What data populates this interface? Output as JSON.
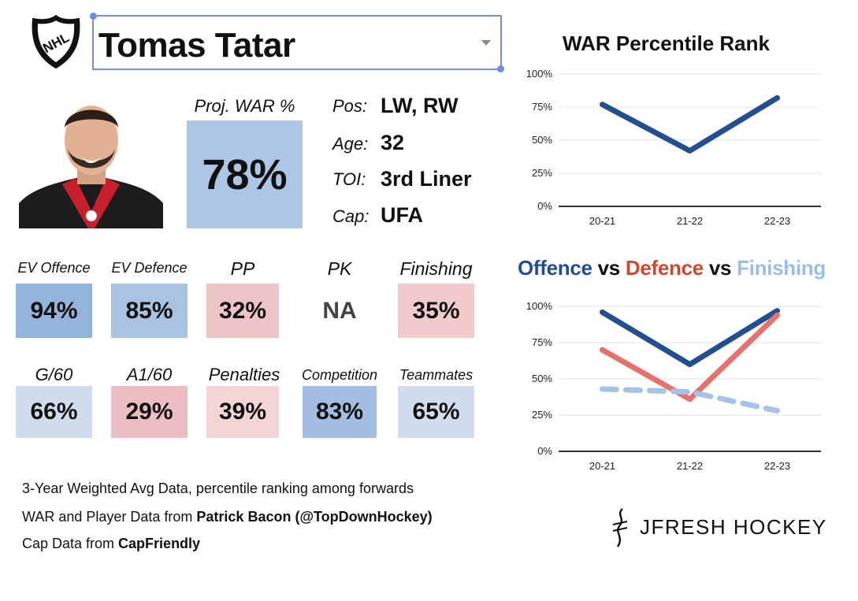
{
  "header": {
    "logo_text": "NHL",
    "player_name": "Tomas Tatar"
  },
  "projection": {
    "label": "Proj. WAR %",
    "value": "78%",
    "color": "#adc6e5"
  },
  "info": [
    {
      "label": "Pos:",
      "value": "LW, RW"
    },
    {
      "label": "Age:",
      "value": "32"
    },
    {
      "label": "TOI:",
      "value": "3rd Liner"
    },
    {
      "label": "Cap:",
      "value": "UFA"
    }
  ],
  "stats_row1": [
    {
      "label": "EV Offence",
      "value": "94%",
      "color": "#94b4dc"
    },
    {
      "label": "EV Defence",
      "value": "85%",
      "color": "#a9c3e3"
    },
    {
      "label": "PP",
      "value": "32%",
      "color": "#efc4c7"
    },
    {
      "label": "PK",
      "value": "NA",
      "color": "#ffffff"
    },
    {
      "label": "Finishing",
      "value": "35%",
      "color": "#f1cacc"
    }
  ],
  "stats_row2": [
    {
      "label": "G/60",
      "value": "66%",
      "color": "#cfdced"
    },
    {
      "label": "A1/60",
      "value": "29%",
      "color": "#ecbdc1"
    },
    {
      "label": "Penalties",
      "value": "39%",
      "color": "#f4d5d6"
    },
    {
      "label": "Competition",
      "value": "83%",
      "color": "#a3bee2"
    },
    {
      "label": "Teammates",
      "value": "65%",
      "color": "#d1ddee"
    }
  ],
  "footer": {
    "line1": "3-Year Weighted Avg Data, percentile ranking among forwards",
    "line2_prefix": "WAR and Player Data from ",
    "line2_bold": "Patrick Bacon (@TopDownHockey)",
    "line3_prefix": "Cap Data from ",
    "line3_bold": "CapFriendly"
  },
  "brand": {
    "name": "JFRESH HOCKEY"
  },
  "chart_data": [
    {
      "type": "line",
      "title": "WAR Percentile Rank",
      "categories": [
        "20-21",
        "21-22",
        "22-23"
      ],
      "y_ticks": [
        "0%",
        "25%",
        "50%",
        "75%",
        "100%"
      ],
      "ylim": [
        0,
        100
      ],
      "grid": true,
      "series": [
        {
          "values": [
            77,
            42,
            82
          ],
          "color": "#234f8f",
          "style": "solid"
        }
      ]
    },
    {
      "type": "line",
      "title_parts": [
        {
          "text": "Offence",
          "color": "#234f8f"
        },
        {
          "text": " vs ",
          "color": "#111111"
        },
        {
          "text": "Defence",
          "color": "#c94a33"
        },
        {
          "text": " vs ",
          "color": "#111111"
        },
        {
          "text": "Finishing",
          "color": "#9bbde3"
        }
      ],
      "categories": [
        "20-21",
        "21-22",
        "22-23"
      ],
      "y_ticks": [
        "0%",
        "25%",
        "50%",
        "75%",
        "100%"
      ],
      "ylim": [
        0,
        100
      ],
      "grid": true,
      "series": [
        {
          "values": [
            96,
            60,
            97
          ],
          "color": "#234f8f",
          "style": "solid"
        },
        {
          "values": [
            70,
            36,
            94
          ],
          "color": "#e5726d",
          "style": "solid"
        },
        {
          "values": [
            43,
            41,
            28
          ],
          "color": "#a4c3e6",
          "style": "dashed"
        }
      ]
    }
  ]
}
